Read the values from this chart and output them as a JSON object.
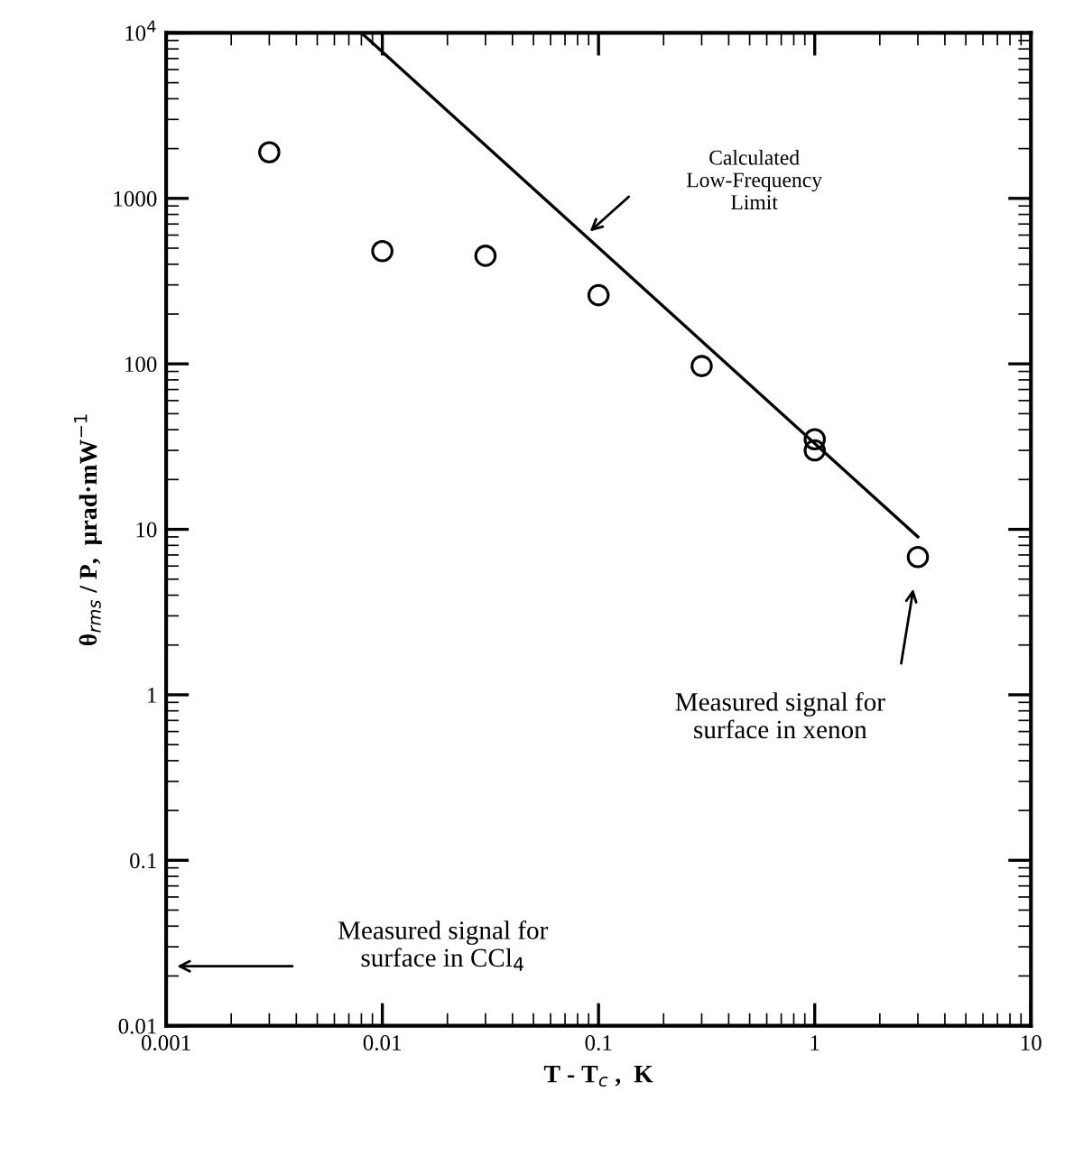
{
  "chart_data": {
    "type": "scatter",
    "xlabel": "T - T$_{c}$ ,  K",
    "ylabel": "θ$_{rms}$ / P,  μrad·mW$^{−1}$",
    "log": "xy",
    "grid": false,
    "legend": false,
    "xlim": [
      0.001,
      10
    ],
    "xticks": [
      {
        "value": 0.001,
        "label": "0.001"
      },
      0.01,
      0.1,
      1,
      10
    ],
    "ylim": [
      0.01,
      10000
    ],
    "yticks": [
      0.01,
      0.1,
      1,
      10,
      100,
      1000,
      {
        "value": 10000,
        "label": "10$^{4}$"
      }
    ],
    "series": [
      {
        "marker": "circle",
        "color": "#000000",
        "x": [
          0.003,
          0.01,
          0.03,
          0.1,
          0.3,
          1,
          1,
          3
        ],
        "values": [
          1900,
          480,
          450,
          260,
          97,
          35,
          30,
          6.8
        ]
      },
      {
        "type": "line",
        "marker": "none",
        "line_style": "solid",
        "color": "#000000",
        "x": [
          0.008,
          3
        ],
        "values": [
          10000,
          9
        ]
      }
    ],
    "annotations": [
      "Calculated\nLow-Frequency\nLimit",
      "Measured signal for\nsurface in xenon",
      "Measured signal for\nsurface in CCl$_{4}$"
    ]
  }
}
